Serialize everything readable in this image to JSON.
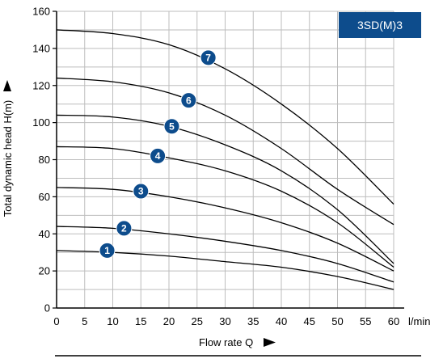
{
  "chart_data": {
    "type": "line",
    "title": "",
    "model_label": "3SD(M)3",
    "xlabel": "Flow rate Q",
    "xunit": "l/min",
    "ylabel": "Total dynamic head H(m)",
    "xlim": [
      0,
      60
    ],
    "ylim": [
      0,
      160
    ],
    "xticks": [
      0,
      5,
      10,
      15,
      20,
      25,
      30,
      35,
      40,
      45,
      50,
      55,
      60
    ],
    "yticks": [
      0,
      20,
      40,
      60,
      80,
      100,
      120,
      140,
      160
    ],
    "grid": true,
    "colors": {
      "marker": "#0d4c8c",
      "label_box": "#0d4c8c",
      "line": "#000000",
      "grid": "#bdbdbd"
    },
    "series": [
      {
        "marker_label": "1",
        "marker_at": [
          9,
          31
        ],
        "x": [
          0,
          10,
          20,
          30,
          40,
          50,
          60
        ],
        "y": [
          31,
          30,
          28,
          25,
          22,
          17,
          10
        ]
      },
      {
        "marker_label": "2",
        "marker_at": [
          12,
          43
        ],
        "x": [
          0,
          10,
          20,
          30,
          40,
          50,
          60
        ],
        "y": [
          44,
          43,
          40,
          36,
          31,
          24,
          14
        ]
      },
      {
        "marker_label": "3",
        "marker_at": [
          15,
          63
        ],
        "x": [
          0,
          10,
          20,
          30,
          40,
          50,
          60
        ],
        "y": [
          65,
          64,
          60,
          54,
          46,
          35,
          20
        ]
      },
      {
        "marker_label": "4",
        "marker_at": [
          18,
          82
        ],
        "x": [
          0,
          10,
          20,
          30,
          40,
          50,
          60
        ],
        "y": [
          87,
          86,
          81,
          74,
          63,
          46,
          22
        ]
      },
      {
        "marker_label": "5",
        "marker_at": [
          20.5,
          98
        ],
        "x": [
          0,
          10,
          20,
          30,
          40,
          50,
          60
        ],
        "y": [
          104,
          103,
          98,
          88,
          74,
          53,
          24
        ]
      },
      {
        "marker_label": "6",
        "marker_at": [
          23.5,
          112
        ],
        "x": [
          0,
          10,
          20,
          30,
          40,
          50,
          60
        ],
        "y": [
          124,
          122,
          116,
          104,
          86,
          64,
          45
        ]
      },
      {
        "marker_label": "7",
        "marker_at": [
          27,
          135
        ],
        "x": [
          0,
          10,
          20,
          30,
          40,
          50,
          60
        ],
        "y": [
          150,
          148,
          142,
          129,
          110,
          86,
          56
        ]
      }
    ]
  }
}
